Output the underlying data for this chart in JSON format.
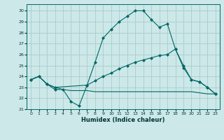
{
  "xlabel": "Humidex (Indice chaleur)",
  "bg_color": "#cce8e8",
  "grid_color": "#aacccc",
  "line_color": "#006666",
  "xlim": [
    -0.5,
    23.5
  ],
  "ylim": [
    21,
    30.6
  ],
  "xticks": [
    0,
    1,
    2,
    3,
    4,
    5,
    6,
    7,
    8,
    9,
    10,
    11,
    12,
    13,
    14,
    15,
    16,
    17,
    18,
    19,
    20,
    21,
    22,
    23
  ],
  "yticks": [
    21,
    22,
    23,
    24,
    25,
    26,
    27,
    28,
    29,
    30
  ],
  "line1_x": [
    0,
    1,
    2,
    3,
    4,
    5,
    6,
    7,
    8,
    9,
    10,
    11,
    12,
    13,
    14,
    15,
    16,
    17,
    18,
    19,
    20,
    21,
    22,
    23
  ],
  "line1_y": [
    23.7,
    24.0,
    23.3,
    22.8,
    22.8,
    21.7,
    21.3,
    23.2,
    25.3,
    27.5,
    28.3,
    29.0,
    29.5,
    30.0,
    30.0,
    29.2,
    28.5,
    28.8,
    26.5,
    24.8,
    23.7,
    23.5,
    23.0,
    22.4
  ],
  "line2_x": [
    0,
    1,
    2,
    3,
    7,
    8,
    9,
    10,
    11,
    12,
    13,
    14,
    15,
    16,
    17,
    18,
    19,
    20,
    21,
    22,
    23
  ],
  "line2_y": [
    23.7,
    24.0,
    23.3,
    23.0,
    23.2,
    23.6,
    24.0,
    24.3,
    24.7,
    25.0,
    25.3,
    25.5,
    25.7,
    25.9,
    26.0,
    26.5,
    25.0,
    23.7,
    23.5,
    23.0,
    22.4
  ],
  "line3_x": [
    0,
    1,
    2,
    3,
    4,
    5,
    6,
    7,
    8,
    9,
    10,
    11,
    12,
    13,
    14,
    15,
    16,
    17,
    18,
    19,
    20,
    21,
    22,
    23
  ],
  "line3_y": [
    23.7,
    24.0,
    23.3,
    23.0,
    22.8,
    22.7,
    22.7,
    22.7,
    22.6,
    22.6,
    22.6,
    22.6,
    22.6,
    22.6,
    22.6,
    22.6,
    22.6,
    22.6,
    22.6,
    22.6,
    22.6,
    22.5,
    22.4,
    22.4
  ]
}
